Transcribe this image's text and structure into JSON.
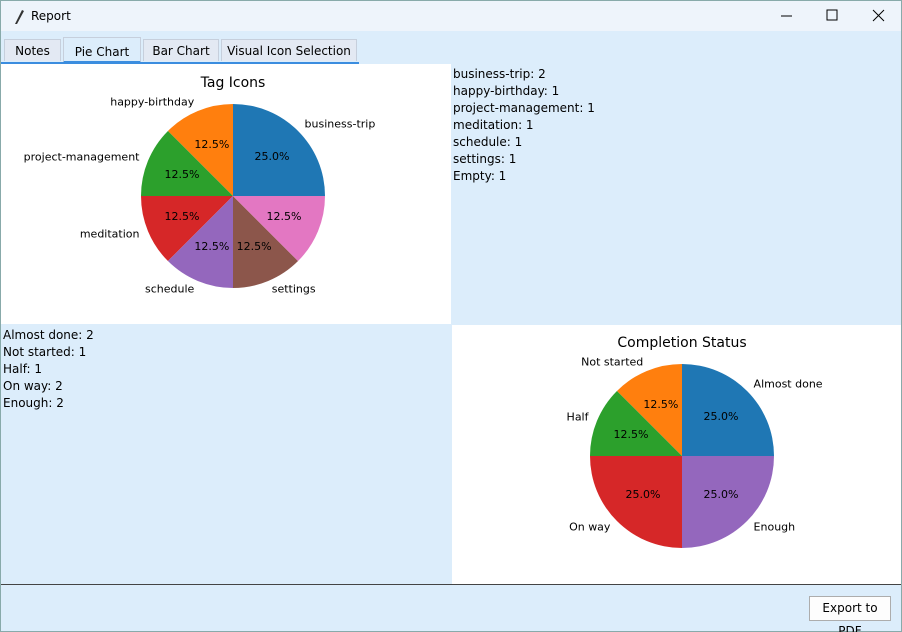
{
  "window": {
    "title": "Report"
  },
  "tabs": [
    "Notes",
    "Pie Chart",
    "Bar Chart",
    "Visual Icon Selection"
  ],
  "tag_list": [
    "business-trip: 2",
    "happy-birthday: 1",
    "project-management: 1",
    "meditation: 1",
    "schedule: 1",
    "settings: 1",
    "Empty: 1"
  ],
  "status_list": [
    "Almost done: 2",
    "Not started: 1",
    "Half: 1",
    "On way: 2",
    "Enough: 2"
  ],
  "export_button": "Export to PDF",
  "chart_data": [
    {
      "type": "pie",
      "title": "Tag Icons",
      "categories": [
        "business-trip",
        "happy-birthday",
        "project-management",
        "meditation",
        "schedule",
        "settings",
        null
      ],
      "values": [
        25,
        12.5,
        12.5,
        12.5,
        12.5,
        12.5,
        12.5
      ],
      "value_labels": [
        "25.0%",
        "12.5%",
        "12.5%",
        "12.5%",
        "12.5%",
        "12.5%",
        "12.5%"
      ],
      "colors": [
        "#1f77b4",
        "#ff7f0e",
        "#2ca02c",
        "#d62728",
        "#9467bd",
        "#8c564b",
        "#e377c2"
      ]
    },
    {
      "type": "pie",
      "title": "Completion Status",
      "categories": [
        "Almost done",
        "Not started",
        "Half",
        "On way",
        "Enough"
      ],
      "values": [
        25,
        12.5,
        12.5,
        25,
        25
      ],
      "value_labels": [
        "25.0%",
        "12.5%",
        "12.5%",
        "25.0%",
        "25.0%"
      ],
      "colors": [
        "#1f77b4",
        "#ff7f0e",
        "#2ca02c",
        "#d62728",
        "#9467bd"
      ]
    }
  ]
}
